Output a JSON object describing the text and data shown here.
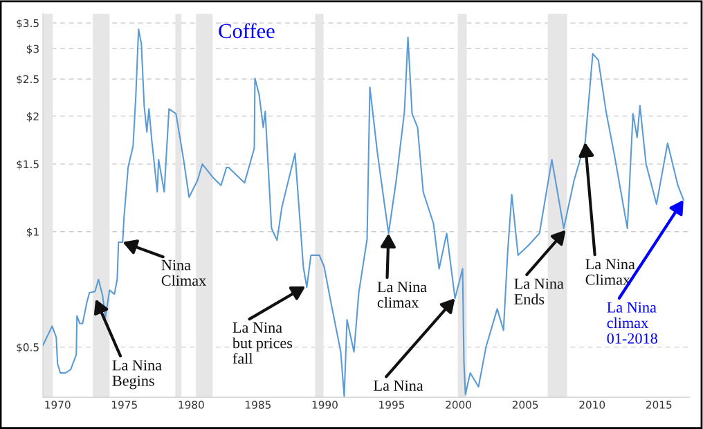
{
  "chart_data": {
    "type": "line",
    "title": "Coffee",
    "series": [
      {
        "color": "#5b9bd5",
        "x": [
          1968.91,
          1969.59,
          1969.9,
          1970.0,
          1970.21,
          1970.57,
          1970.98,
          1971.4,
          1971.45,
          1971.66,
          1971.87,
          1972.18,
          1972.38,
          1972.8,
          1973.06,
          1973.37,
          1973.58,
          1973.89,
          1974.25,
          1974.46,
          1974.56,
          1974.87,
          1974.97,
          1975.28,
          1975.65,
          1975.85,
          1976.06,
          1976.27,
          1976.48,
          1976.68,
          1976.84,
          1977.05,
          1977.46,
          1977.56,
          1977.98,
          1978.34,
          1978.86,
          1979.43,
          1979.84,
          1980.47,
          1980.83,
          1981.66,
          1982.23,
          1982.64,
          1982.8,
          1983.99,
          1984.72,
          1984.77,
          1985.08,
          1985.39,
          1985.54,
          1986.01,
          1986.42,
          1986.79,
          1987.77,
          1988.39,
          1988.65,
          1988.96,
          1989.59,
          1989.95,
          1990.36,
          1991.19,
          1991.45,
          1991.66,
          1992.18,
          1992.54,
          1993.16,
          1993.37,
          1993.94,
          1994.46,
          1994.77,
          1995.34,
          1995.96,
          1996.22,
          1996.53,
          1996.94,
          1997.36,
          1998.13,
          1998.55,
          1999.12,
          1999.74,
          2000.31,
          2000.41,
          2000.52,
          2000.88,
          2001.5,
          2002.07,
          2002.9,
          2003.37,
          2003.68,
          2003.99,
          2004.46,
          2005.28,
          2006.06,
          2006.99,
          2007.88,
          2008.65,
          2009.48,
          2010.05,
          2010.47,
          2011.04,
          2011.66,
          2012.64,
          2013.06,
          2013.37,
          2013.58,
          2014.04,
          2014.82,
          2015.65,
          2016.42,
          2016.84
        ],
        "values": [
          0.506,
          0.567,
          0.53,
          0.452,
          0.428,
          0.428,
          0.437,
          0.478,
          0.603,
          0.576,
          0.576,
          0.651,
          0.693,
          0.698,
          0.75,
          0.681,
          0.598,
          0.704,
          0.687,
          0.75,
          0.939,
          0.939,
          1.087,
          1.474,
          1.671,
          2.239,
          3.37,
          3.09,
          2.13,
          1.82,
          2.09,
          1.73,
          1.27,
          1.54,
          1.27,
          2.09,
          2.03,
          1.54,
          1.23,
          1.36,
          1.5,
          1.38,
          1.32,
          1.47,
          1.47,
          1.34,
          1.65,
          2.51,
          2.28,
          1.87,
          2.06,
          1.02,
          0.95,
          1.16,
          1.6,
          0.81,
          0.716,
          0.868,
          0.868,
          0.81,
          0.68,
          0.486,
          0.372,
          0.589,
          0.486,
          0.693,
          0.955,
          2.38,
          1.6,
          1.18,
          0.99,
          1.36,
          2.06,
          3.21,
          2.03,
          1.87,
          1.27,
          1.05,
          0.8,
          0.99,
          0.67,
          0.8,
          0.456,
          0.376,
          0.428,
          0.394,
          0.502,
          0.629,
          0.553,
          0.882,
          1.25,
          0.868,
          0.924,
          0.99,
          1.54,
          1.02,
          1.36,
          1.71,
          2.91,
          2.8,
          2.06,
          1.59,
          1.02,
          2.03,
          1.76,
          2.13,
          1.5,
          1.18,
          1.7,
          1.32,
          1.21
        ]
      }
    ],
    "xlim": [
      1968.9,
      2017.3
    ],
    "xticks": [
      1970,
      1975,
      1980,
      1985,
      1990,
      1995,
      2000,
      2005,
      2010,
      2015
    ],
    "ylim": [
      0.37,
      3.7
    ],
    "log": true,
    "yticks": [
      {
        "value": 0.5,
        "label": "$0.5"
      },
      {
        "value": 1,
        "label": "$1"
      },
      {
        "value": 1.5,
        "label": "$1.5"
      },
      {
        "value": 2,
        "label": "$2"
      },
      {
        "value": 2.5,
        "label": "$2.5"
      },
      {
        "value": 3,
        "label": "$3"
      },
      {
        "value": 3.5,
        "label": "$3.5"
      }
    ],
    "grid": "y",
    "bands": [
      {
        "axis": "x",
        "from": 1968.91,
        "to": 1969.64,
        "color": "#e6e6e6"
      },
      {
        "axis": "x",
        "from": 1972.64,
        "to": 1973.89,
        "color": "#e6e6e6"
      },
      {
        "axis": "x",
        "from": 1978.81,
        "to": 1979.27,
        "color": "#e6e6e6"
      },
      {
        "axis": "x",
        "from": 1980.36,
        "to": 1981.61,
        "color": "#e6e6e6"
      },
      {
        "axis": "x",
        "from": 1989.27,
        "to": 1989.9,
        "color": "#e6e6e6"
      },
      {
        "axis": "x",
        "from": 1999.95,
        "to": 2000.62,
        "color": "#e6e6e6"
      },
      {
        "axis": "x",
        "from": 2006.68,
        "to": 2008.13,
        "color": "#e6e6e6"
      }
    ],
    "annotations": [
      {
        "text": "Nina\nClimax",
        "x": 1974.87,
        "y": 0.939
      },
      {
        "text": "La Nina\nBegins",
        "x": 1972.85,
        "y": 0.667
      },
      {
        "text": "La Nina\nbut prices\nfall",
        "x": 1988.55,
        "y": 0.72
      },
      {
        "text": "La Nina\nclimax",
        "x": 1994.77,
        "y": 0.99
      },
      {
        "text": "La Nina",
        "x": 1999.74,
        "y": 0.67
      },
      {
        "text": "La Nina\nEnds",
        "x": 2008.03,
        "y": 1.01
      },
      {
        "text": "La Nina\nClimax",
        "x": 2009.48,
        "y": 1.71
      },
      {
        "text": "La Nina\nclimax\n01-2018",
        "x": 2016.84,
        "y": 1.21
      }
    ]
  }
}
